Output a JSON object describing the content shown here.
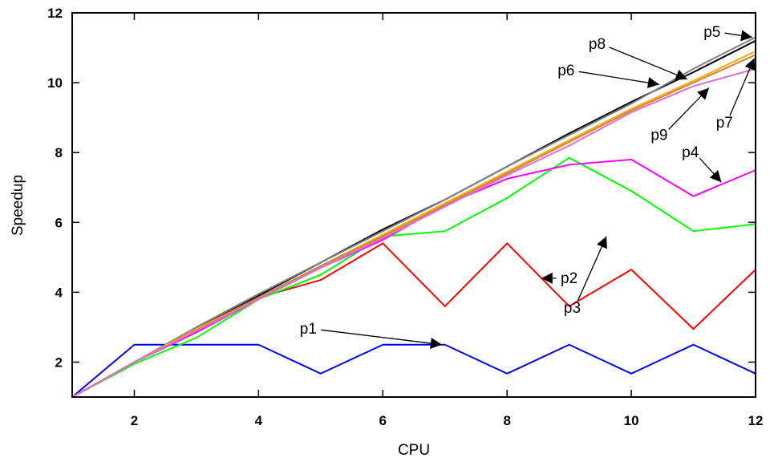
{
  "chart_data": {
    "type": "line",
    "title": "",
    "xlabel": "CPU",
    "ylabel": "Speedup",
    "xlim": [
      1,
      12
    ],
    "ylim": [
      1,
      12
    ],
    "xticks": [
      2,
      4,
      6,
      8,
      10,
      12
    ],
    "yticks": [
      2,
      4,
      6,
      8,
      10,
      12
    ],
    "grid": false,
    "x": [
      1,
      2,
      3,
      4,
      5,
      6,
      7,
      8,
      9,
      10,
      11,
      12
    ],
    "series": [
      {
        "id": "s1",
        "color": "#0000ff",
        "values": [
          1.0,
          2.5,
          2.5,
          2.5,
          1.67,
          2.5,
          2.5,
          1.67,
          2.5,
          1.67,
          2.5,
          1.67
        ]
      },
      {
        "id": "s2",
        "color": "#ff0000",
        "values": [
          1.0,
          2.0,
          2.9,
          3.85,
          4.35,
          5.4,
          3.6,
          5.4,
          3.6,
          4.65,
          2.95,
          4.65
        ]
      },
      {
        "id": "s3",
        "color": "#00ff00",
        "values": [
          1.0,
          1.95,
          2.7,
          3.8,
          4.5,
          5.6,
          5.75,
          6.7,
          7.85,
          6.9,
          5.75,
          5.95
        ]
      },
      {
        "id": "s4",
        "color": "#ff00ff",
        "values": [
          1.0,
          2.0,
          2.85,
          3.8,
          4.7,
          5.5,
          6.5,
          7.25,
          7.65,
          7.8,
          6.75,
          7.5
        ]
      },
      {
        "id": "s5",
        "color": "#000000",
        "values": [
          1.0,
          2.0,
          2.95,
          3.9,
          4.85,
          5.8,
          6.65,
          7.6,
          8.55,
          9.45,
          10.3,
          11.2
        ]
      },
      {
        "id": "s6",
        "color": "#808080",
        "values": [
          1.0,
          2.0,
          3.0,
          3.95,
          4.85,
          5.75,
          6.65,
          7.6,
          8.5,
          9.4,
          10.4,
          11.3
        ]
      },
      {
        "id": "s7",
        "color": "#ffa500",
        "values": [
          1.0,
          2.0,
          2.95,
          3.85,
          4.75,
          5.65,
          6.55,
          7.45,
          8.35,
          9.25,
          10.05,
          10.9
        ]
      },
      {
        "id": "s8",
        "color": "#cd853f",
        "values": [
          1.0,
          2.0,
          2.9,
          3.85,
          4.75,
          5.6,
          6.5,
          7.4,
          8.3,
          9.2,
          10.0,
          10.8
        ]
      },
      {
        "id": "s9",
        "color": "#da70d6",
        "values": [
          1.0,
          2.0,
          2.9,
          3.8,
          4.7,
          5.55,
          6.45,
          7.35,
          8.2,
          9.15,
          9.9,
          10.4
        ]
      }
    ],
    "annotations": [
      {
        "label": "p1",
        "text_at": [
          4.8,
          2.95
        ],
        "arrow_to": [
          6.95,
          2.5
        ]
      },
      {
        "label": "p2",
        "text_at": [
          9.0,
          4.4
        ],
        "arrow_to": [
          8.55,
          4.4
        ]
      },
      {
        "label": "p3",
        "text_at": [
          9.05,
          3.55
        ],
        "arrow_to": [
          9.6,
          5.6
        ]
      },
      {
        "label": "p4",
        "text_at": [
          10.95,
          8.0
        ],
        "arrow_to": [
          11.45,
          7.15
        ]
      },
      {
        "label": "p5",
        "text_at": [
          11.3,
          11.45
        ],
        "arrow_to": [
          11.95,
          11.3
        ]
      },
      {
        "label": "p6",
        "text_at": [
          8.95,
          10.35
        ],
        "arrow_to": [
          10.45,
          9.95
        ]
      },
      {
        "label": "p7",
        "text_at": [
          11.5,
          8.85
        ],
        "arrow_to": [
          11.98,
          10.7
        ]
      },
      {
        "label": "p8",
        "text_at": [
          9.45,
          11.1
        ],
        "arrow_to": [
          10.9,
          10.1
        ]
      },
      {
        "label": "p9",
        "text_at": [
          10.45,
          8.5
        ],
        "arrow_to": [
          11.25,
          9.85
        ]
      }
    ]
  }
}
